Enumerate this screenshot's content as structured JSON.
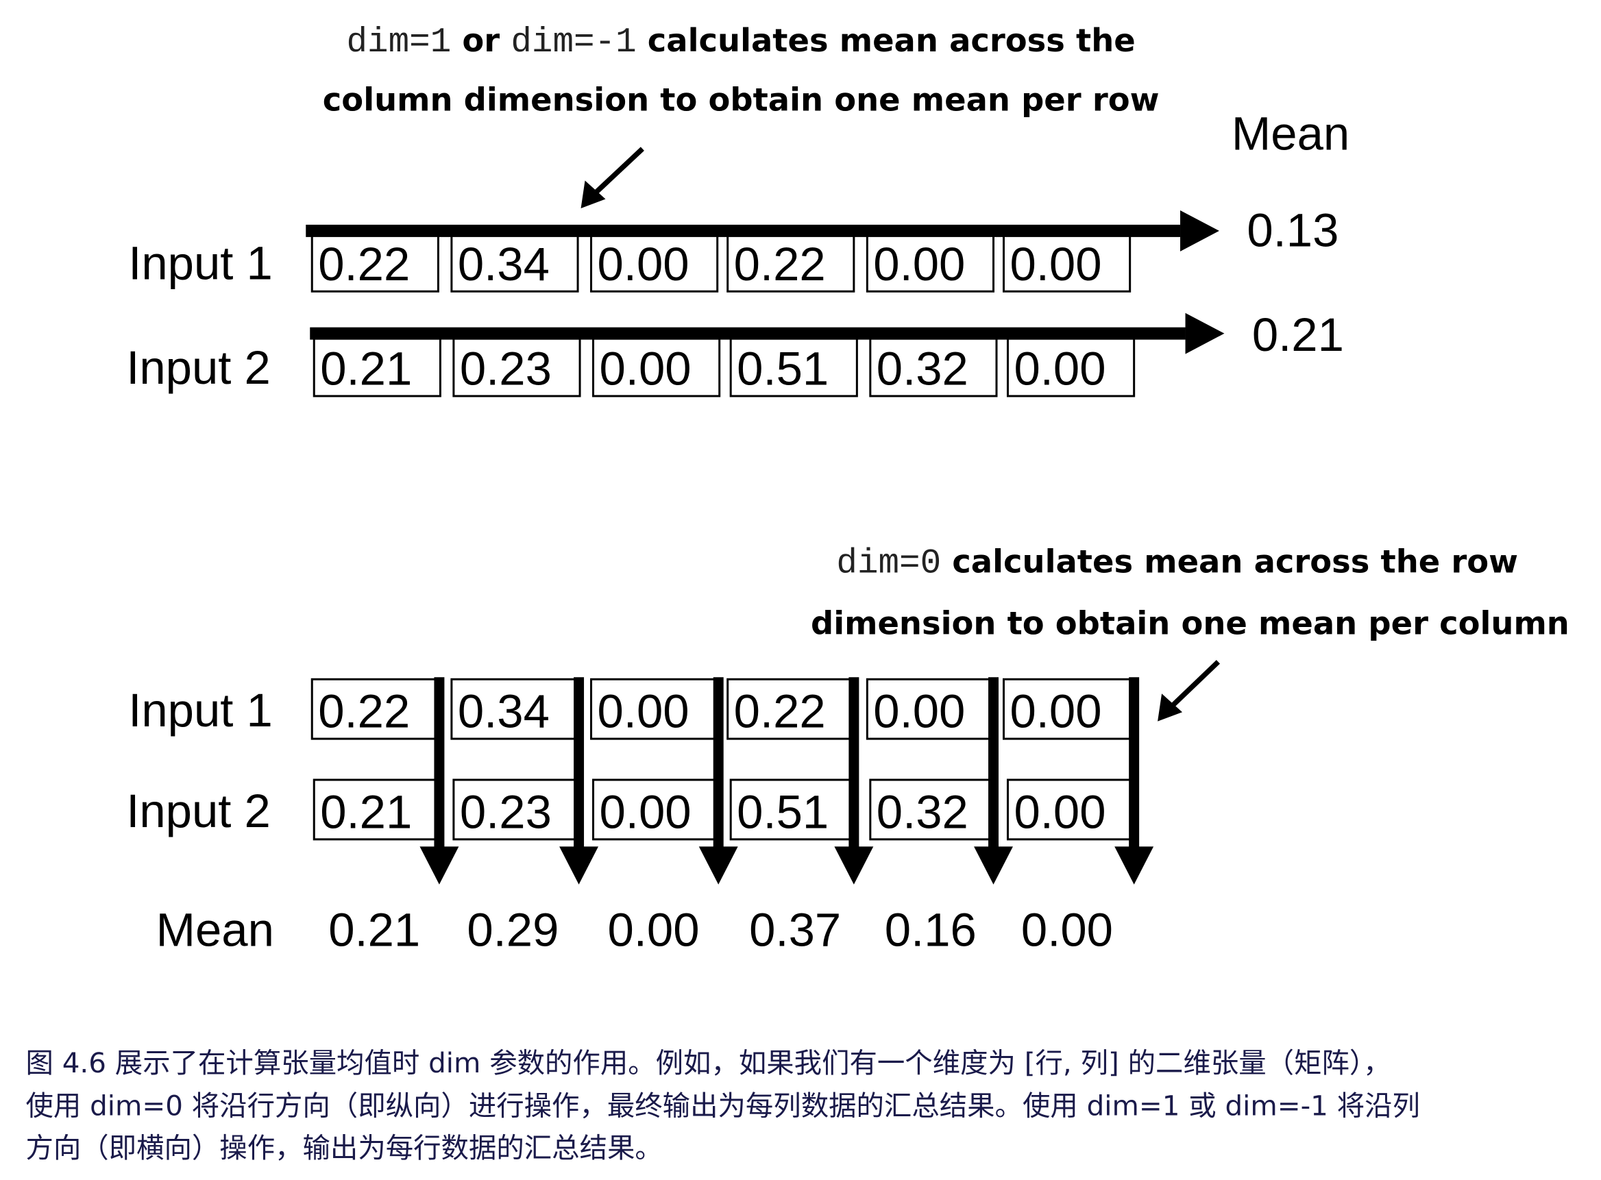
{
  "top": {
    "annotation": {
      "code1": "dim=1",
      "or": " or ",
      "code2": "dim=-1",
      "text1": " calculates mean across the",
      "line2": "column dimension to obtain one mean per row"
    },
    "mean_header": "Mean",
    "rows": [
      {
        "label": "Input 1",
        "values": [
          "0.22",
          "0.34",
          "0.00",
          "0.22",
          "0.00",
          "0.00"
        ],
        "mean": "0.13"
      },
      {
        "label": "Input 2",
        "values": [
          "0.21",
          "0.23",
          "0.00",
          "0.51",
          "0.32",
          "0.00"
        ],
        "mean": "0.21"
      }
    ]
  },
  "bottom": {
    "annotation": {
      "code": "dim=0",
      "text1": " calculates mean across the row",
      "line2": "dimension to obtain one mean per column"
    },
    "rows": [
      {
        "label": "Input 1",
        "values": [
          "0.22",
          "0.34",
          "0.00",
          "0.22",
          "0.00",
          "0.00"
        ]
      },
      {
        "label": "Input 2",
        "values": [
          "0.21",
          "0.23",
          "0.00",
          "0.51",
          "0.32",
          "0.00"
        ]
      }
    ],
    "mean_label": "Mean",
    "means": [
      "0.21",
      "0.29",
      "0.00",
      "0.37",
      "0.16",
      "0.00"
    ]
  },
  "caption": {
    "lines": [
      "图 4.6 展示了在计算张量均值时 dim 参数的作用。例如，如果我们有一个维度为 [行, 列] 的二维张量（矩阵），",
      "使用 dim=0 将沿行方向（即纵向）进行操作，最终输出为每列数据的汇总结果。使用 dim=1 或 dim=-1 将沿列",
      "方向（即横向）操作，输出为每行数据的汇总结果。"
    ]
  }
}
